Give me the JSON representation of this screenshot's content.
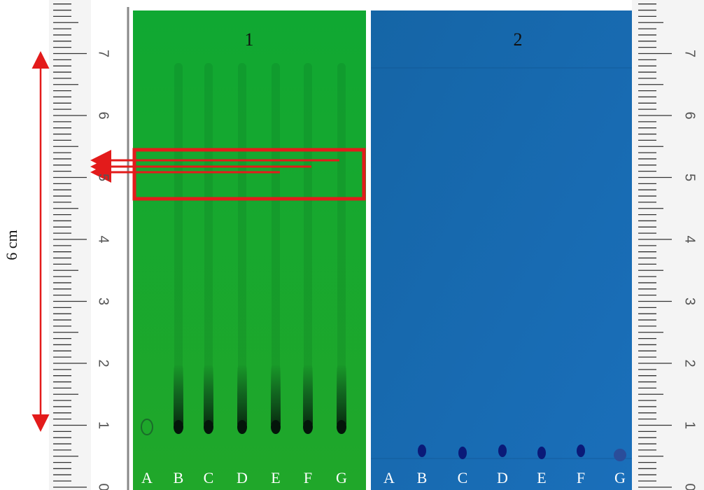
{
  "scale_label": "6 cm",
  "ruler_labels": [
    "0",
    "1",
    "2",
    "3",
    "4",
    "5",
    "6",
    "7"
  ],
  "panels": [
    {
      "label": "1",
      "lanes": [
        "A",
        "B",
        "C",
        "D",
        "E",
        "F",
        "G"
      ]
    },
    {
      "label": "2",
      "lanes": [
        "A",
        "B",
        "C",
        "D",
        "E",
        "F",
        "G"
      ]
    }
  ]
}
